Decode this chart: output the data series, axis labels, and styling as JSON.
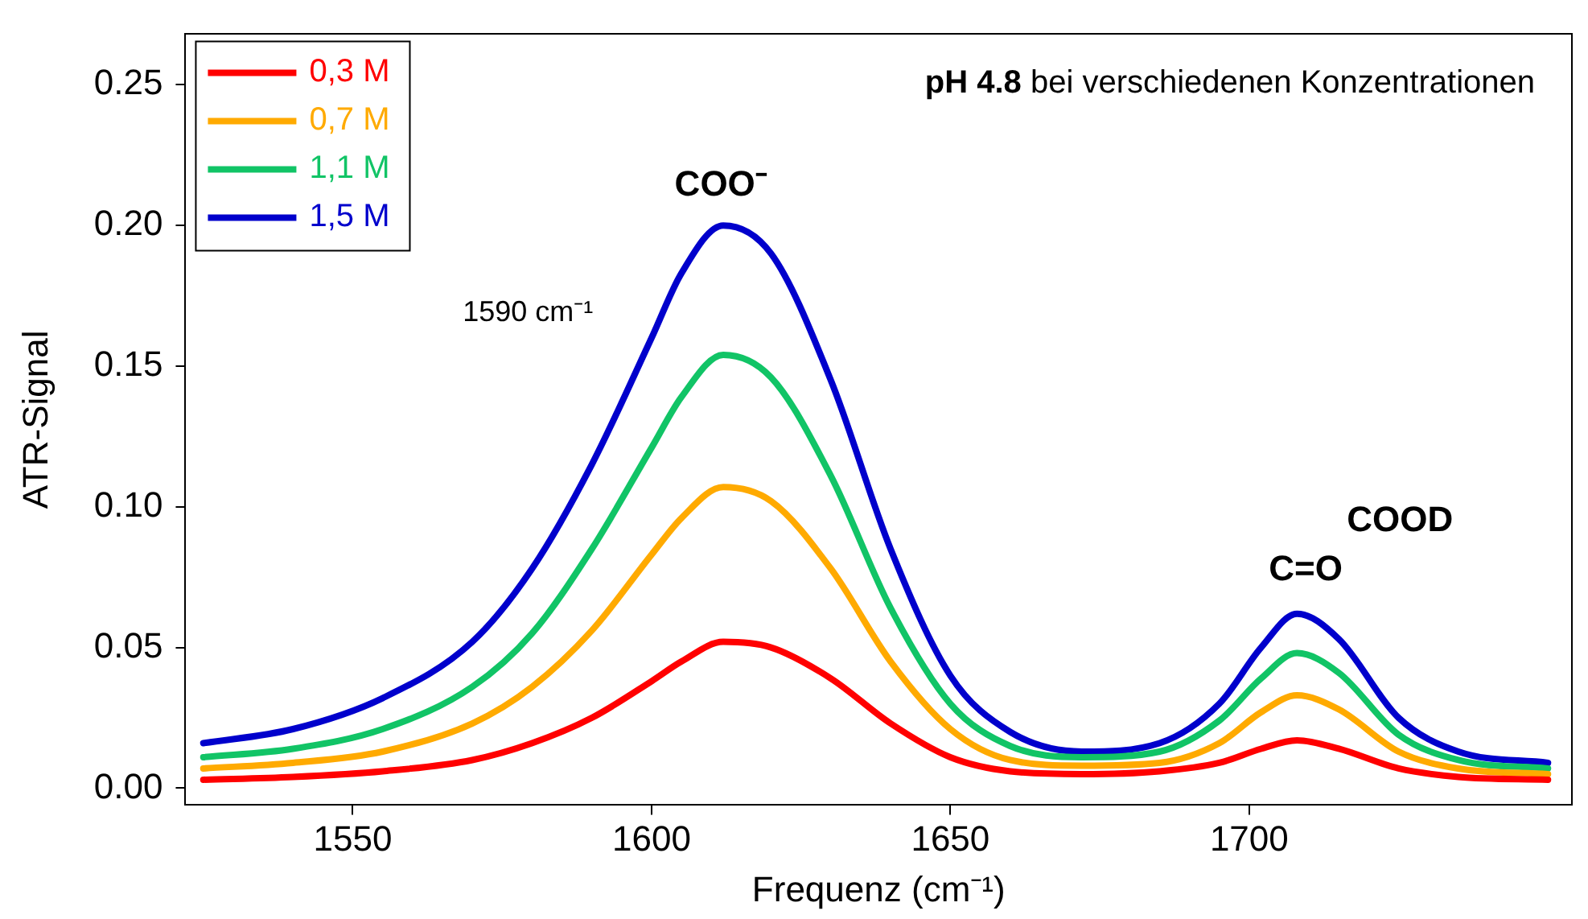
{
  "chart_data": {
    "type": "line",
    "title": "pH 4.8 bei verschiedenen Konzentrationen",
    "xlabel": "Frequenz (cm⁻¹)",
    "ylabel": "ATR-Signal",
    "x": [
      1525,
      1540,
      1555,
      1570,
      1580,
      1590,
      1600,
      1605,
      1612,
      1620,
      1630,
      1640,
      1650,
      1660,
      1672,
      1685,
      1695,
      1702,
      1708,
      1715,
      1725,
      1735,
      1750
    ],
    "series": [
      {
        "name": "0,3 M",
        "color": "#ff0000",
        "values": [
          0.003,
          0.004,
          0.006,
          0.01,
          0.016,
          0.025,
          0.038,
          0.045,
          0.052,
          0.05,
          0.039,
          0.023,
          0.011,
          0.006,
          0.005,
          0.006,
          0.009,
          0.014,
          0.017,
          0.014,
          0.007,
          0.004,
          0.003
        ]
      },
      {
        "name": "0,7 M",
        "color": "#ffaa00",
        "values": [
          0.007,
          0.009,
          0.013,
          0.023,
          0.036,
          0.056,
          0.083,
          0.096,
          0.107,
          0.102,
          0.078,
          0.045,
          0.021,
          0.01,
          0.008,
          0.009,
          0.016,
          0.027,
          0.033,
          0.028,
          0.013,
          0.007,
          0.005
        ]
      },
      {
        "name": "1,1 M",
        "color": "#11c466",
        "values": [
          0.011,
          0.014,
          0.021,
          0.036,
          0.055,
          0.085,
          0.121,
          0.139,
          0.154,
          0.146,
          0.111,
          0.064,
          0.03,
          0.015,
          0.011,
          0.013,
          0.024,
          0.039,
          0.048,
          0.041,
          0.019,
          0.01,
          0.007
        ]
      },
      {
        "name": "1,5 M",
        "color": "#0000cc",
        "values": [
          0.016,
          0.021,
          0.032,
          0.052,
          0.078,
          0.115,
          0.16,
          0.183,
          0.2,
          0.19,
          0.145,
          0.085,
          0.04,
          0.02,
          0.013,
          0.016,
          0.03,
          0.05,
          0.062,
          0.053,
          0.025,
          0.013,
          0.009
        ]
      }
    ],
    "xlim": [
      1522,
      1754
    ],
    "xticks": [
      1550,
      1600,
      1650,
      1700
    ],
    "ylim": [
      -0.006,
      0.268
    ],
    "yticks": [
      {
        "value": 0,
        "label": "0.00"
      },
      {
        "value": 0.05,
        "label": "0.05"
      },
      {
        "value": 0.1,
        "label": "0.10"
      },
      {
        "value": 0.15,
        "label": "0.15"
      },
      {
        "value": 0.2,
        "label": "0.20"
      },
      {
        "value": 0.25,
        "label": "0.25"
      }
    ],
    "grid": false,
    "legend": "top left",
    "marker": "none",
    "line_style": "solid",
    "annotations": [
      "COO⁻",
      "1590 cm⁻¹",
      "C=O",
      "COOD"
    ]
  }
}
